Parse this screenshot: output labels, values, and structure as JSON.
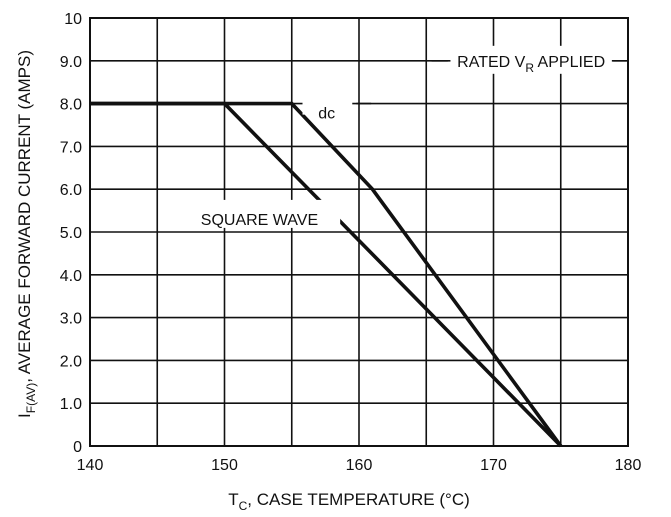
{
  "chart_data": {
    "type": "line",
    "xlabel": {
      "main": "T",
      "sub": "C",
      "rest": ", CASE TEMPERATURE (°C)"
    },
    "ylabel": {
      "main": "I",
      "sub": "F(AV)",
      "rest": ", AVERAGE FORWARD CURRENT (AMPS)"
    },
    "xlim": [
      140,
      180
    ],
    "ylim": [
      0,
      10
    ],
    "x_ticks": [
      140,
      150,
      160,
      170,
      180
    ],
    "x_tick_labels": [
      "140",
      "150",
      "160",
      "170",
      "180"
    ],
    "y_ticks": [
      0,
      1,
      2,
      3,
      4,
      5,
      6,
      7,
      8,
      9,
      10
    ],
    "y_tick_labels": [
      "0",
      "1.0",
      "2.0",
      "3.0",
      "4.0",
      "5.0",
      "6.0",
      "7.0",
      "8.0",
      "9.0",
      "10"
    ],
    "x_grid": [
      145,
      150,
      155,
      160,
      165,
      170,
      175
    ],
    "y_grid": [
      1,
      2,
      3,
      4,
      5,
      6,
      7,
      8,
      9
    ],
    "grid": true,
    "series": [
      {
        "name": "dc",
        "points": [
          [
            140,
            8.0
          ],
          [
            155,
            8.0
          ],
          [
            161,
            6.0
          ],
          [
            175,
            0
          ]
        ]
      },
      {
        "name": "SQUARE WAVE",
        "points": [
          [
            140,
            8.0
          ],
          [
            150,
            8.0
          ],
          [
            175,
            0
          ]
        ]
      }
    ],
    "annotations": [
      {
        "name": "rated",
        "main": "RATED V",
        "sub": "R",
        "rest": " APPLIED"
      }
    ]
  }
}
